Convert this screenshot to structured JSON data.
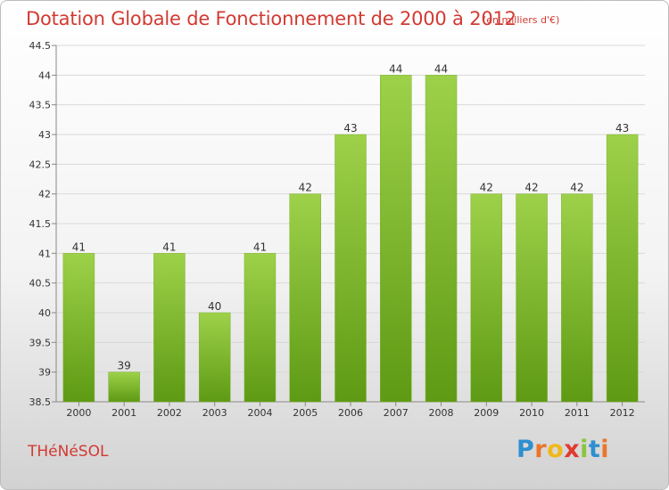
{
  "header": {
    "title": "Dotation Globale de Fonctionnement de 2000 à 2012",
    "unit": "(en milliers d'€)"
  },
  "footer": {
    "commune": "THéNéSOL",
    "logo": {
      "letters": [
        "P",
        "r",
        "o",
        "x",
        "i",
        "t",
        "i"
      ],
      "colors": [
        "#2e8fd0",
        "#e9762b",
        "#f1b81a",
        "#e23a2e",
        "#8cc43d",
        "#2e8fd0",
        "#e9762b"
      ]
    }
  },
  "colors": {
    "bar_light": "#9ed14a",
    "bar_dark": "#5e9a14",
    "title": "#d23a32"
  },
  "chart_data": {
    "type": "bar",
    "categories": [
      "2000",
      "2001",
      "2002",
      "2003",
      "2004",
      "2005",
      "2006",
      "2007",
      "2008",
      "2009",
      "2010",
      "2011",
      "2012"
    ],
    "values": [
      41,
      39,
      41,
      40,
      41,
      42,
      43,
      44,
      44,
      42,
      42,
      42,
      43
    ],
    "data_labels": [
      "41",
      "39",
      "41",
      "40",
      "41",
      "42",
      "43",
      "44",
      "44",
      "42",
      "42",
      "42",
      "43"
    ],
    "yticks": [
      "38.5",
      "39",
      "39.5",
      "40",
      "40.5",
      "41",
      "41.5",
      "42",
      "42.5",
      "43",
      "43.5",
      "44",
      "44.5"
    ],
    "ylim": [
      38.5,
      44.5
    ],
    "grid": "horizontal",
    "legend": "none"
  }
}
